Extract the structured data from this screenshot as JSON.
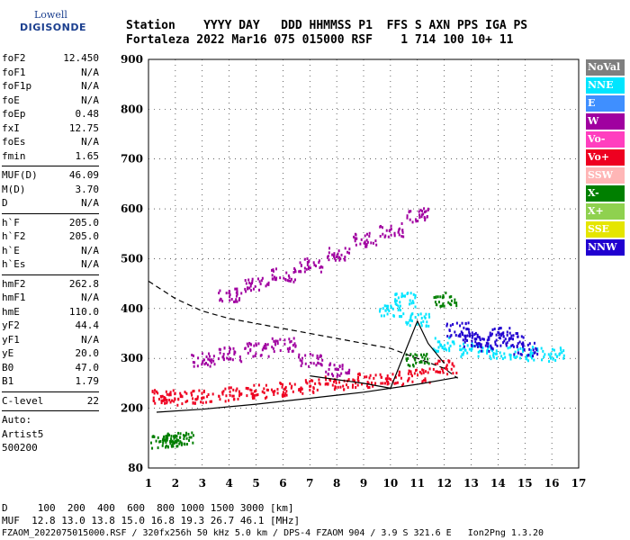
{
  "header": {
    "line1": "Station    YYYY DAY   DDD HHMMSS P1  FFS S AXN PPS IGA PS",
    "line2": "Fortaleza 2022 Mar16 075 015000 RSF    1 714 100 10+ 11"
  },
  "logo": {
    "line1": "Lowell",
    "line2": "DIGISONDE"
  },
  "params": [
    {
      "group": [
        {
          "k": "foF2",
          "v": "12.450"
        },
        {
          "k": "foF1",
          "v": "N/A"
        },
        {
          "k": "foF1p",
          "v": "N/A"
        },
        {
          "k": "foE",
          "v": "N/A"
        },
        {
          "k": "foEp",
          "v": "0.48"
        },
        {
          "k": "fxI",
          "v": "12.75"
        },
        {
          "k": "foEs",
          "v": "N/A"
        },
        {
          "k": "fmin",
          "v": "1.65"
        }
      ]
    },
    {
      "group": [
        {
          "k": "MUF(D)",
          "v": "46.09"
        },
        {
          "k": "M(D)",
          "v": "3.70"
        },
        {
          "k": "D",
          "v": "N/A"
        }
      ]
    },
    {
      "group": [
        {
          "k": "h`F",
          "v": "205.0"
        },
        {
          "k": "h`F2",
          "v": "205.0"
        },
        {
          "k": "h`E",
          "v": "N/A"
        },
        {
          "k": "h`Es",
          "v": "N/A"
        }
      ]
    },
    {
      "group": [
        {
          "k": "hmF2",
          "v": "262.8"
        },
        {
          "k": "hmF1",
          "v": "N/A"
        },
        {
          "k": "hmE",
          "v": "110.0"
        },
        {
          "k": "yF2",
          "v": "44.4"
        },
        {
          "k": "yF1",
          "v": "N/A"
        },
        {
          "k": "yE",
          "v": "20.0"
        },
        {
          "k": "B0",
          "v": "47.0"
        },
        {
          "k": "B1",
          "v": "1.79"
        }
      ]
    },
    {
      "group": [
        {
          "k": "C-level",
          "v": "22"
        }
      ]
    },
    {
      "group": [
        {
          "k": "Auto:",
          "v": ""
        },
        {
          "k": "Artist5",
          "v": ""
        },
        {
          "k": "500200",
          "v": ""
        }
      ]
    }
  ],
  "footer": {
    "line1": "D     100  200  400  600  800 1000 1500 3000 [km]",
    "line2": "MUF  12.8 13.0 13.8 15.0 16.8 19.3 26.7 46.1 [MHz]",
    "line3": "FZAOM_2022075015000.RSF / 320fx256h 50 kHz 5.0 km / DPS-4 FZAOM 904 / 3.9 S 321.6 E   Ion2Png 1.3.20"
  },
  "legend": [
    {
      "label": "NoVal",
      "color": "#7f7f7f"
    },
    {
      "label": "NNE",
      "color": "#00e5ff"
    },
    {
      "label": "E",
      "color": "#3f8fff"
    },
    {
      "label": "W",
      "color": "#a000a0"
    },
    {
      "label": "Vo-",
      "color": "#ff3fbf"
    },
    {
      "label": "Vo+",
      "color": "#ee0020"
    },
    {
      "label": "SSW",
      "color": "#ffb6b6"
    },
    {
      "label": "X-",
      "color": "#007f00"
    },
    {
      "label": "X+",
      "color": "#8fd14f"
    },
    {
      "label": "SSE",
      "color": "#e5e500"
    },
    {
      "label": "NNW",
      "color": "#2000d0"
    }
  ],
  "chart_data": {
    "type": "scatter",
    "xlabel": "",
    "ylabel": "",
    "xlim": [
      1,
      17
    ],
    "ylim": [
      80,
      900
    ],
    "x_ticks": [
      1,
      2,
      3,
      4,
      5,
      6,
      7,
      8,
      9,
      10,
      11,
      12,
      13,
      14,
      15,
      16,
      17
    ],
    "y_ticks": [
      80,
      200,
      300,
      400,
      500,
      600,
      700,
      800,
      900
    ],
    "grid": true,
    "series": [
      {
        "color": "#ee0020",
        "points": [
          [
            1.5,
            225
          ],
          [
            2,
            222
          ],
          [
            3,
            226
          ],
          [
            4,
            230
          ],
          [
            5,
            236
          ],
          [
            6,
            240
          ],
          [
            7,
            246
          ],
          [
            8,
            252
          ],
          [
            9,
            258
          ],
          [
            10,
            262
          ],
          [
            11,
            268
          ],
          [
            12,
            285
          ]
        ]
      },
      {
        "color": "#a000a0",
        "points": [
          [
            3,
            300
          ],
          [
            4,
            310
          ],
          [
            5,
            320
          ],
          [
            6,
            330
          ],
          [
            7,
            300
          ],
          [
            8,
            280
          ],
          [
            4,
            430
          ],
          [
            5,
            450
          ],
          [
            6,
            470
          ],
          [
            7,
            490
          ],
          [
            8,
            510
          ],
          [
            9,
            540
          ],
          [
            10,
            560
          ],
          [
            11,
            590
          ]
        ]
      },
      {
        "color": "#00e5ff",
        "points": [
          [
            10,
            400
          ],
          [
            10.5,
            420
          ],
          [
            11,
            380
          ],
          [
            12,
            330
          ],
          [
            13,
            320
          ],
          [
            14,
            315
          ],
          [
            15,
            312
          ],
          [
            16,
            310
          ]
        ]
      },
      {
        "color": "#2000d0",
        "points": [
          [
            12.5,
            360
          ],
          [
            13,
            340
          ],
          [
            13.5,
            330
          ],
          [
            14,
            350
          ],
          [
            14.5,
            340
          ],
          [
            15,
            320
          ]
        ]
      },
      {
        "color": "#007f00",
        "points": [
          [
            1.5,
            135
          ],
          [
            2,
            138
          ],
          [
            2.2,
            140
          ],
          [
            11,
            300
          ],
          [
            12,
            420
          ]
        ]
      }
    ],
    "traces": [
      {
        "name": "",
        "style": "solid",
        "points": [
          [
            1.3,
            192
          ],
          [
            3,
            198
          ],
          [
            5,
            208
          ],
          [
            7,
            220
          ],
          [
            9,
            232
          ],
          [
            11,
            248
          ],
          [
            12.5,
            262
          ]
        ]
      },
      {
        "name": "",
        "style": "dashed",
        "points": [
          [
            1,
            455
          ],
          [
            2,
            420
          ],
          [
            3,
            395
          ],
          [
            4,
            380
          ],
          [
            5,
            370
          ],
          [
            6,
            360
          ],
          [
            7,
            350
          ],
          [
            8,
            340
          ],
          [
            9,
            330
          ],
          [
            10,
            320
          ],
          [
            11,
            300
          ],
          [
            12,
            280
          ],
          [
            12.5,
            260
          ]
        ]
      },
      {
        "name": "",
        "style": "solid",
        "points": [
          [
            7,
            265
          ],
          [
            9,
            250
          ],
          [
            10,
            240
          ],
          [
            11,
            375
          ],
          [
            11.4,
            330
          ],
          [
            12,
            290
          ]
        ]
      }
    ]
  }
}
